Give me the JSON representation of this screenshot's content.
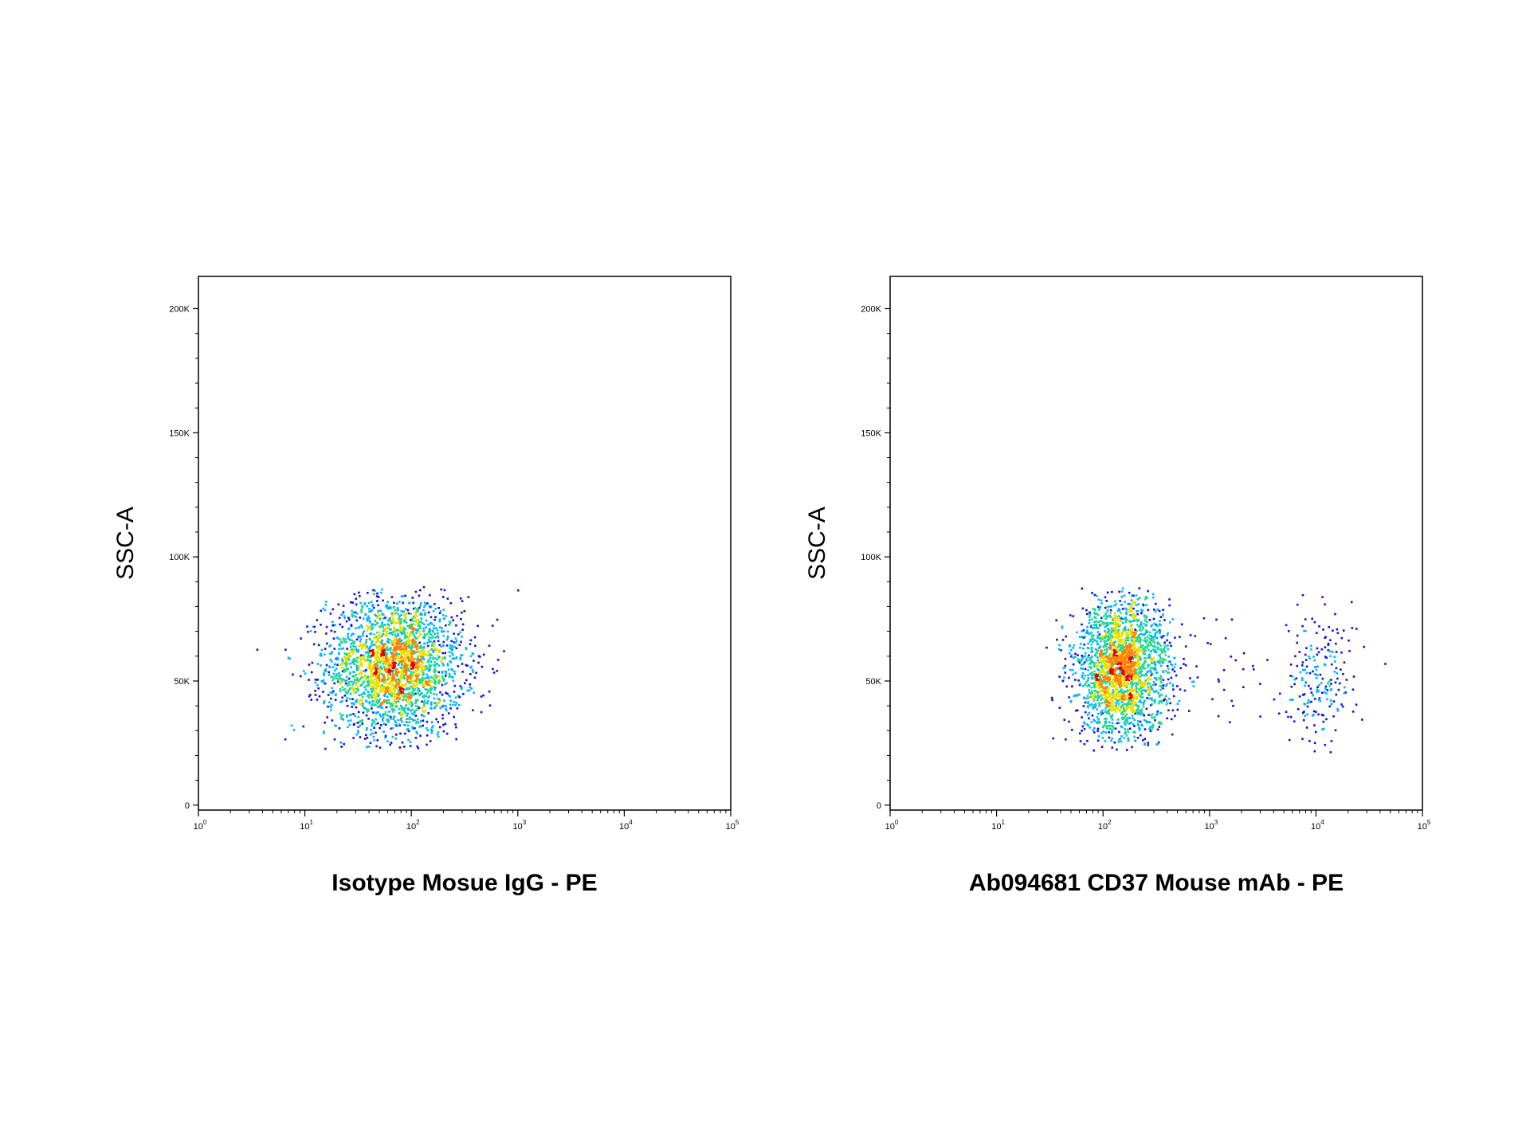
{
  "colors": {
    "density_low": "#1010d8",
    "density_low_mid": "#00b4ff",
    "density_mid": "#20d890",
    "density_high_mid": "#e8e000",
    "density_high": "#ff8000",
    "density_peak": "#e00000",
    "axis": "#000000",
    "background": "#ffffff"
  },
  "chart_data": [
    {
      "type": "scatter",
      "title": "",
      "xlabel": "Isotype Mosue IgG - PE",
      "ylabel": "SSC-A",
      "xscale": "log",
      "xlim": [
        1,
        100000
      ],
      "ylim": [
        -2000,
        213000
      ],
      "x_ticks": [
        {
          "base": "10",
          "exp": "0",
          "value": 1
        },
        {
          "base": "10",
          "exp": "1",
          "value": 10
        },
        {
          "base": "10",
          "exp": "2",
          "value": 100
        },
        {
          "base": "10",
          "exp": "3",
          "value": 1000
        },
        {
          "base": "10",
          "exp": "4",
          "value": 10000
        },
        {
          "base": "10",
          "exp": "5",
          "value": 100000
        }
      ],
      "y_ticks": [
        {
          "label": "0",
          "value": 0
        },
        {
          "label": "50K",
          "value": 50000
        },
        {
          "label": "100K",
          "value": 100000
        },
        {
          "label": "150K",
          "value": 150000
        },
        {
          "label": "200K",
          "value": 200000
        }
      ],
      "grid": false,
      "legend": "none",
      "color_encoding": "event density (blue = low, red = high)",
      "populations": [
        {
          "name": "",
          "events": 2600,
          "x_center": 70,
          "x_spread_log10": 0.32,
          "y_center": 56000,
          "y_spread": 14000,
          "y_min": 22000,
          "y_max": 88000
        }
      ]
    },
    {
      "type": "scatter",
      "title": "",
      "xlabel": "Ab094681 CD37 Mouse mAb - PE",
      "ylabel": "SSC-A",
      "xscale": "log",
      "xlim": [
        1,
        100000
      ],
      "ylim": [
        -2000,
        213000
      ],
      "x_ticks": [
        {
          "base": "10",
          "exp": "0",
          "value": 1
        },
        {
          "base": "10",
          "exp": "1",
          "value": 10
        },
        {
          "base": "10",
          "exp": "2",
          "value": 100
        },
        {
          "base": "10",
          "exp": "3",
          "value": 1000
        },
        {
          "base": "10",
          "exp": "4",
          "value": 10000
        },
        {
          "base": "10",
          "exp": "5",
          "value": 100000
        }
      ],
      "y_ticks": [
        {
          "label": "0",
          "value": 0
        },
        {
          "label": "50K",
          "value": 50000
        },
        {
          "label": "100K",
          "value": 100000
        },
        {
          "label": "150K",
          "value": 150000
        },
        {
          "label": "200K",
          "value": 200000
        }
      ],
      "grid": false,
      "legend": "none",
      "color_encoding": "event density (blue = low, red = high)",
      "populations": [
        {
          "name": "",
          "events": 2300,
          "x_center": 150,
          "x_spread_log10": 0.22,
          "y_center": 55000,
          "y_spread": 14000,
          "y_min": 22000,
          "y_max": 88000
        },
        {
          "name": "",
          "events": 200,
          "x_center": 11000,
          "x_spread_log10": 0.16,
          "y_center": 50000,
          "y_spread": 15000,
          "y_min": 21000,
          "y_max": 88000
        },
        {
          "name": "",
          "events": 40,
          "x_center": 1500,
          "x_spread_log10": 0.5,
          "y_center": 55000,
          "y_spread": 15000,
          "y_min": 25000,
          "y_max": 85000
        }
      ]
    }
  ]
}
